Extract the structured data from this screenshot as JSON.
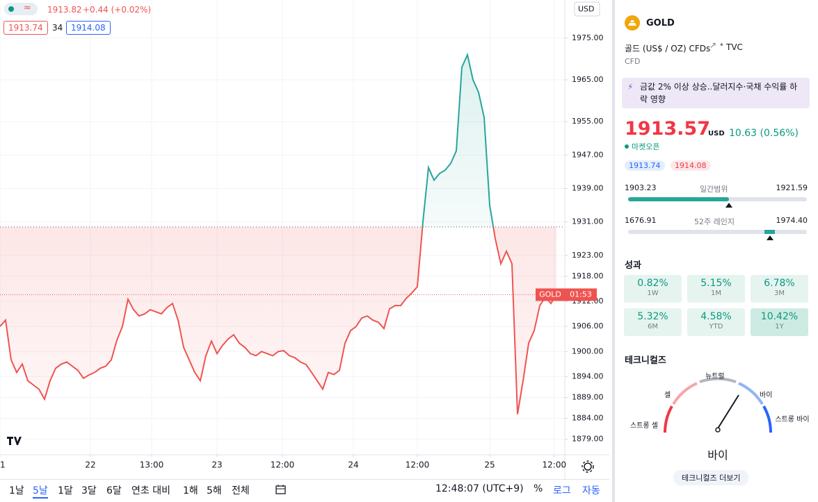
{
  "chart_data": {
    "type": "line",
    "style": "baseline",
    "baseline": 1929.8,
    "colors": {
      "up": "#26a69a",
      "down": "#ef5350"
    },
    "x": [
      0,
      1,
      2,
      3,
      4,
      5,
      6,
      7,
      8,
      9,
      10,
      11,
      12,
      13,
      14,
      15,
      16,
      17,
      18,
      19,
      20,
      21,
      22,
      23,
      24,
      25,
      26,
      27,
      28,
      29,
      30,
      31,
      32,
      33,
      34,
      35,
      36,
      37,
      38,
      39,
      40,
      41,
      42,
      43,
      44,
      45,
      46,
      47,
      48,
      49,
      50,
      51,
      52,
      53,
      54,
      55,
      56,
      57,
      58,
      59,
      60,
      61,
      62,
      63,
      64,
      65,
      66,
      67,
      68,
      69,
      70,
      71,
      72,
      73,
      74,
      75,
      76,
      77,
      78,
      79,
      80,
      81,
      82,
      83,
      84,
      85,
      86,
      87,
      88,
      89,
      90,
      91,
      92,
      93,
      94,
      95,
      96,
      97,
      98,
      99,
      100
    ],
    "values": [
      1906,
      1907.5,
      1898,
      1895,
      1897,
      1893,
      1892,
      1891,
      1888.6,
      1893,
      1896,
      1897,
      1897.5,
      1896.5,
      1895.5,
      1893.6,
      1894.4,
      1895,
      1896,
      1896.5,
      1898,
      1902.7,
      1906,
      1912.5,
      1910,
      1908.5,
      1909,
      1910,
      1909.5,
      1909,
      1910.5,
      1911.5,
      1907.5,
      1901,
      1898,
      1895,
      1893,
      1899,
      1902.5,
      1899.5,
      1901.5,
      1903,
      1904,
      1902,
      1901,
      1899.5,
      1899,
      1900,
      1899.5,
      1899,
      1900,
      1900.2,
      1899,
      1898.5,
      1897.5,
      1896.9,
      1895,
      1893,
      1891,
      1895,
      1894.5,
      1895.5,
      1902,
      1905,
      1906,
      1908,
      1908.5,
      1907.5,
      1907,
      1905.5,
      1910.2,
      1911,
      1911,
      1912.7,
      1914,
      1915.5,
      1931,
      1944,
      1941,
      1942.6,
      1943.4,
      1945,
      1948,
      1968,
      1971,
      1965,
      1962,
      1956,
      1935,
      1927,
      1921,
      1924,
      1921,
      1885,
      1893,
      1902,
      1905,
      1911,
      1913,
      1911.5,
      1913.6
    ],
    "xlim": [
      0,
      100
    ],
    "xticks": [
      {
        "value": 0,
        "label": "1"
      },
      {
        "value": 16.25,
        "label": "22"
      },
      {
        "value": 27.25,
        "label": "13:00"
      },
      {
        "value": 39,
        "label": "23"
      },
      {
        "value": 50.75,
        "label": "12:00"
      },
      {
        "value": 63.5,
        "label": "24"
      },
      {
        "value": 75,
        "label": "12:00"
      },
      {
        "value": 88,
        "label": "25"
      },
      {
        "value": 99.6,
        "label": "12:00"
      }
    ],
    "ylim": [
      1875.3,
      1984.1
    ],
    "yticks": [
      {
        "value": 1975,
        "label": "1975.00"
      },
      {
        "value": 1965,
        "label": "1965.00"
      },
      {
        "value": 1955,
        "label": "1955.00"
      },
      {
        "value": 1947,
        "label": "1947.00"
      },
      {
        "value": 1939,
        "label": "1939.00"
      },
      {
        "value": 1931,
        "label": "1931.00"
      },
      {
        "value": 1923,
        "label": "1923.00"
      },
      {
        "value": 1918,
        "label": "1918.00"
      },
      {
        "value": 1912,
        "label": "1912.00"
      },
      {
        "value": 1906,
        "label": "1906.00"
      },
      {
        "value": 1900,
        "label": "1900.00"
      },
      {
        "value": 1894,
        "label": "1894.00"
      },
      {
        "value": 1889,
        "label": "1889.00"
      },
      {
        "value": 1884,
        "label": "1884.00"
      },
      {
        "value": 1879,
        "label": "1879.00"
      }
    ],
    "grid": true,
    "price_tag": "GOLD",
    "countdown": "01:53",
    "currency": "USD"
  },
  "legend": {
    "icon": "≈",
    "price": "1913.82",
    "change": "+0.44 (+0.02%)",
    "bid": "1913.74",
    "spread": "34",
    "ask": "1914.08"
  },
  "toolbar": {
    "ranges": [
      "1날",
      "5날",
      "1달",
      "3달",
      "6달",
      "연초 대비",
      "1해",
      "5해",
      "전체"
    ],
    "selected": 1,
    "time": "12:48:07 (UTC+9)",
    "buttons": [
      "%",
      "로그",
      "자동"
    ]
  },
  "symbol": {
    "ticker": "GOLD",
    "name": "골드 (US$ / OZ) CFDs",
    "exchange": "TVC",
    "kind": "CFD",
    "news": "금값 2% 이상 상승..달러지수·국채 수익률 하락 영향",
    "price": "1913.57",
    "currency": "USD",
    "change": "10.63 (0.56%)",
    "status": "마켓오픈",
    "bid": "1913.74",
    "ask": "1914.08",
    "day_range": {
      "low": "1903.23",
      "label": "일간범위",
      "high": "1921.59"
    },
    "year_range": {
      "low": "1676.91",
      "label": "52주 레인지",
      "high": "1974.40"
    }
  },
  "performance": {
    "title": "성과",
    "items": [
      {
        "value": "0.82%",
        "period": "1W"
      },
      {
        "value": "5.15%",
        "period": "1M"
      },
      {
        "value": "6.78%",
        "period": "3M"
      },
      {
        "value": "5.32%",
        "period": "6M"
      },
      {
        "value": "4.58%",
        "period": "YTD"
      },
      {
        "value": "10.42%",
        "period": "1Y"
      }
    ]
  },
  "technicals": {
    "title": "테크니컬즈",
    "labels": [
      "스트롱 셀",
      "셀",
      "뉴트럴",
      "바이",
      "스트롱 바이"
    ],
    "result": "바이",
    "button": "테크니컬즈 더보기"
  }
}
